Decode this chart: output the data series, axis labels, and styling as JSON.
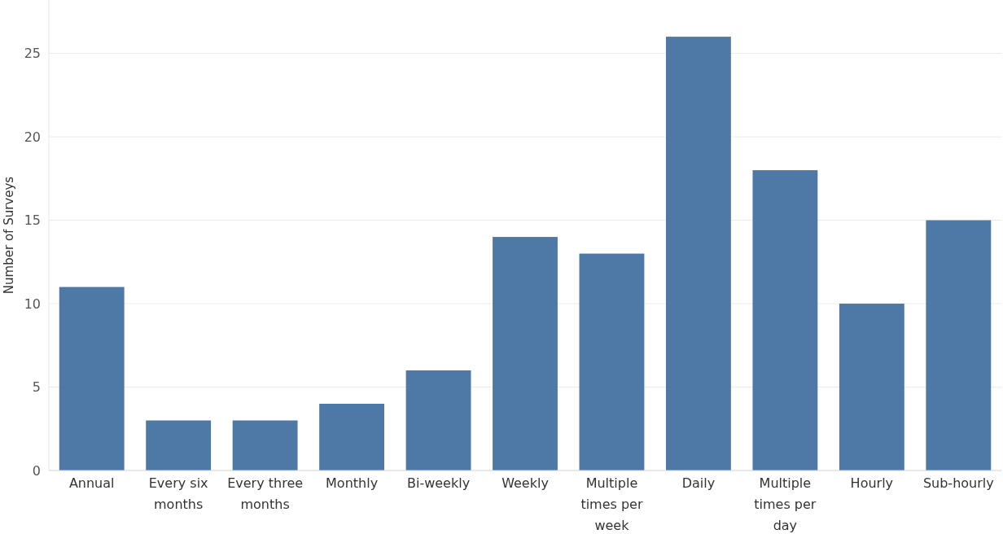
{
  "chart_data": {
    "type": "bar",
    "ylabel": "Number of Surveys",
    "categories": [
      "Annual",
      "Every six months",
      "Every three months",
      "Monthly",
      "Bi-weekly",
      "Weekly",
      "Multiple times per week",
      "Daily",
      "Multiple times per day",
      "Hourly",
      "Sub-hourly"
    ],
    "values": [
      11,
      3,
      3,
      4,
      6,
      14,
      13,
      26,
      18,
      10,
      15
    ],
    "color": "#4e79a7",
    "ylim": [
      0,
      28.2
    ],
    "yticks": [
      0,
      5,
      10,
      15,
      20,
      25
    ],
    "grid": "y"
  }
}
